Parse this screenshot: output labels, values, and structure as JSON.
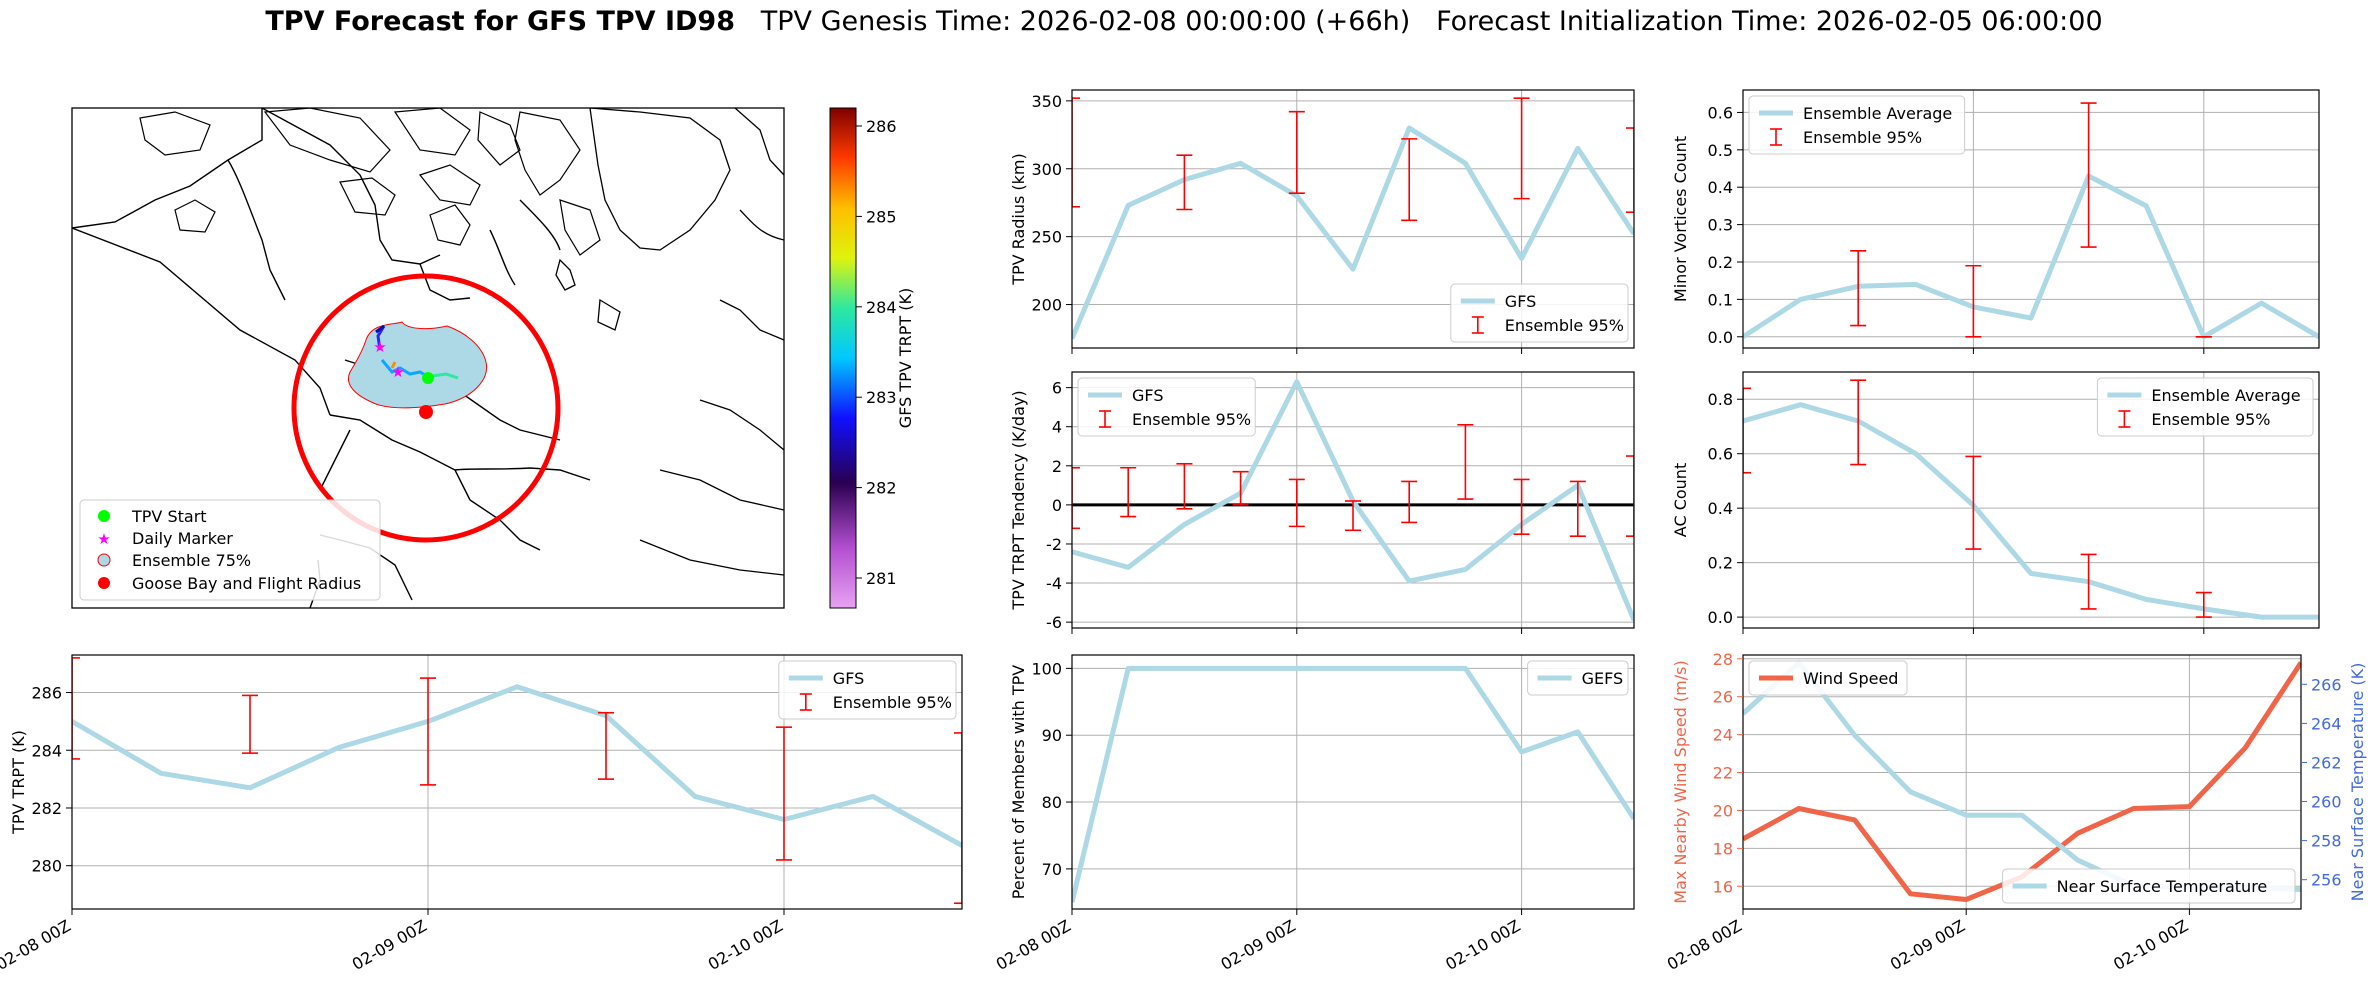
{
  "figure": {
    "title_bold": "TPV Forecast for GFS TPV ID98",
    "title_genesis": "TPV Genesis Time: 2026-02-08 00:00:00 (+66h)",
    "title_init": "Forecast Initialization Time: 2026-02-05 06:00:00"
  },
  "colors": {
    "gfs": "#add8e6",
    "err": "#ff0000",
    "wind": "#f06448",
    "temp_axis": "#4169e1"
  },
  "map": {
    "legend": [
      "TPV Start",
      "Daily Marker",
      "Ensemble 75%",
      "Goose Bay and Flight Radius"
    ],
    "colorbar": {
      "label": "GFS TPV TRPT (K)",
      "ticks": [
        "281",
        "282",
        "283",
        "284",
        "285",
        "286"
      ]
    }
  },
  "chart_data": [
    {
      "id": "radius",
      "type": "line",
      "ylabel": "TPV Radius (km)",
      "ylim": [
        168,
        358
      ],
      "yticks": [
        200,
        250,
        300,
        350
      ],
      "xlim": [
        0,
        60
      ],
      "series": [
        {
          "name": "GFS",
          "x": [
            0,
            6,
            12,
            18,
            24,
            30,
            36,
            42,
            48,
            54,
            60
          ],
          "values": [
            175,
            273,
            292,
            304,
            280,
            226,
            330,
            304,
            234,
            315,
            252
          ]
        }
      ],
      "errorbars": {
        "name": "Ensemble 95%",
        "x": [
          0,
          12,
          24,
          36,
          48,
          60
        ],
        "low": [
          272,
          270,
          282,
          262,
          278,
          268
        ],
        "high": [
          352,
          310,
          342,
          322,
          352,
          330
        ]
      },
      "legend": [
        "GFS",
        "Ensemble 95%"
      ],
      "legend_pos": "lower-right"
    },
    {
      "id": "minor",
      "type": "line",
      "ylabel": "Minor Vortices Count",
      "ylim": [
        -0.03,
        0.66
      ],
      "yticks": [
        0.0,
        0.1,
        0.2,
        0.3,
        0.4,
        0.5,
        0.6
      ],
      "xlim": [
        0,
        60
      ],
      "series": [
        {
          "name": "Ensemble Average",
          "x": [
            0,
            6,
            12,
            18,
            24,
            30,
            36,
            42,
            48,
            54,
            60
          ],
          "values": [
            0.0,
            0.1,
            0.135,
            0.14,
            0.08,
            0.05,
            0.43,
            0.35,
            0.0,
            0.09,
            0.0
          ]
        }
      ],
      "errorbars": {
        "name": "Ensemble 95%",
        "x": [
          12,
          24,
          36,
          48
        ],
        "low": [
          0.03,
          0.0,
          0.24,
          0.0
        ],
        "high": [
          0.23,
          0.19,
          0.625,
          0.0
        ]
      },
      "legend": [
        "Ensemble Average",
        "Ensemble 95%"
      ],
      "legend_pos": "upper-left"
    },
    {
      "id": "tendency",
      "type": "line",
      "ylabel": "TPV TRPT Tendency (K/day)",
      "ylim": [
        -6.3,
        6.8
      ],
      "yticks": [
        -6,
        -4,
        -2,
        0,
        2,
        4,
        6
      ],
      "xlim": [
        0,
        60
      ],
      "zero_line": true,
      "series": [
        {
          "name": "GFS",
          "x": [
            0,
            6,
            12,
            18,
            24,
            30,
            36,
            42,
            48,
            54,
            60
          ],
          "values": [
            -2.4,
            -3.2,
            -1.0,
            0.6,
            6.3,
            0.2,
            -3.9,
            -3.3,
            -1.0,
            1.0,
            -5.9
          ]
        }
      ],
      "errorbars": {
        "name": "Ensemble 95%",
        "x": [
          0,
          6,
          12,
          18,
          24,
          30,
          36,
          42,
          48,
          54,
          60
        ],
        "low": [
          -1.2,
          -0.6,
          -0.2,
          0.0,
          -1.1,
          -1.3,
          -0.9,
          0.3,
          -1.5,
          -1.6,
          -1.6
        ],
        "high": [
          1.9,
          1.9,
          2.1,
          1.7,
          1.3,
          0.2,
          1.2,
          4.1,
          1.3,
          1.2,
          2.5
        ]
      },
      "legend": [
        "GFS",
        "Ensemble 95%"
      ],
      "legend_pos": "upper-left"
    },
    {
      "id": "ac",
      "type": "line",
      "ylabel": "AC Count",
      "ylim": [
        -0.04,
        0.9
      ],
      "yticks": [
        0.0,
        0.2,
        0.4,
        0.6,
        0.8
      ],
      "xlim": [
        0,
        60
      ],
      "series": [
        {
          "name": "Ensemble Average",
          "x": [
            0,
            6,
            12,
            18,
            24,
            30,
            36,
            42,
            48,
            54,
            60
          ],
          "values": [
            0.72,
            0.78,
            0.72,
            0.6,
            0.41,
            0.16,
            0.13,
            0.065,
            0.03,
            0.0,
            0.0
          ]
        }
      ],
      "errorbars": {
        "name": "Ensemble 95%",
        "x": [
          0,
          12,
          24,
          36,
          48
        ],
        "low": [
          0.53,
          0.56,
          0.25,
          0.03,
          0.0
        ],
        "high": [
          0.84,
          0.87,
          0.59,
          0.23,
          0.09
        ]
      },
      "legend": [
        "Ensemble Average",
        "Ensemble 95%"
      ],
      "legend_pos": "upper-right"
    },
    {
      "id": "trpt",
      "type": "line",
      "ylabel": "TPV TRPT (K)",
      "ylim": [
        278.5,
        287.3
      ],
      "yticks": [
        280,
        282,
        284,
        286
      ],
      "xlim": [
        0,
        60
      ],
      "xticks": [
        0,
        24,
        48
      ],
      "xticklabels": [
        "02-08 00Z",
        "02-09 00Z",
        "02-10 00Z"
      ],
      "series": [
        {
          "name": "GFS",
          "x": [
            0,
            6,
            12,
            18,
            24,
            30,
            36,
            42,
            48,
            54,
            60
          ],
          "values": [
            285.0,
            283.2,
            282.7,
            284.1,
            285.0,
            286.2,
            285.2,
            282.4,
            281.6,
            282.4,
            280.7
          ]
        }
      ],
      "errorbars": {
        "name": "Ensemble 95%",
        "x": [
          0,
          12,
          24,
          36,
          48,
          60
        ],
        "low": [
          283.7,
          283.9,
          282.8,
          283.0,
          280.2,
          278.7
        ],
        "high": [
          287.2,
          285.9,
          286.5,
          285.3,
          284.8,
          284.6
        ]
      },
      "legend": [
        "GFS",
        "Ensemble 95%"
      ],
      "legend_pos": "upper-right"
    },
    {
      "id": "percent",
      "type": "line",
      "ylabel": "Percent of Members with TPV",
      "ylim": [
        64,
        102
      ],
      "yticks": [
        70,
        80,
        90,
        100
      ],
      "xlim": [
        0,
        60
      ],
      "xticks": [
        0,
        24,
        48
      ],
      "xticklabels": [
        "02-08 00Z",
        "02-09 00Z",
        "02-10 00Z"
      ],
      "series": [
        {
          "name": "GEFS",
          "x": [
            0,
            6,
            12,
            18,
            24,
            30,
            36,
            42,
            48,
            54,
            60
          ],
          "values": [
            65,
            100,
            100,
            100,
            100,
            100,
            100,
            100,
            87.5,
            90.5,
            77.5
          ]
        }
      ],
      "legend": [
        "GEFS"
      ],
      "legend_pos": "upper-right"
    },
    {
      "id": "wind",
      "type": "line",
      "ylabel": "Max Nearby Wind Speed (m/s)",
      "ylim": [
        14.8,
        28.2
      ],
      "yticks": [
        16,
        18,
        20,
        22,
        24,
        26,
        28
      ],
      "ylabel2": "Near Surface Temperature (K)",
      "ylim2": [
        254.5,
        267.5
      ],
      "yticks2": [
        256,
        258,
        260,
        262,
        264,
        266
      ],
      "xlim": [
        0,
        60
      ],
      "xticks": [
        0,
        24,
        48
      ],
      "xticklabels": [
        "02-08 00Z",
        "02-09 00Z",
        "02-10 00Z"
      ],
      "series": [
        {
          "name": "Wind Speed",
          "axis": "left",
          "x": [
            0,
            6,
            12,
            18,
            24,
            30,
            36,
            42,
            48,
            54,
            60
          ],
          "values": [
            18.5,
            20.1,
            19.5,
            15.6,
            15.3,
            16.5,
            18.8,
            20.1,
            20.2,
            23.3,
            27.8
          ]
        },
        {
          "name": "Near Surface Temperature",
          "axis": "right",
          "x": [
            0,
            6,
            12,
            18,
            24,
            30,
            36,
            42,
            48,
            54,
            60
          ],
          "values": [
            264.5,
            267.1,
            263.4,
            260.5,
            259.3,
            259.3,
            257.0,
            255.7,
            255.6,
            255.6,
            255.5
          ]
        }
      ],
      "legend": [
        "Wind Speed",
        "Near Surface Temperature"
      ],
      "legend_pos": "upper-left / lower-right"
    }
  ]
}
